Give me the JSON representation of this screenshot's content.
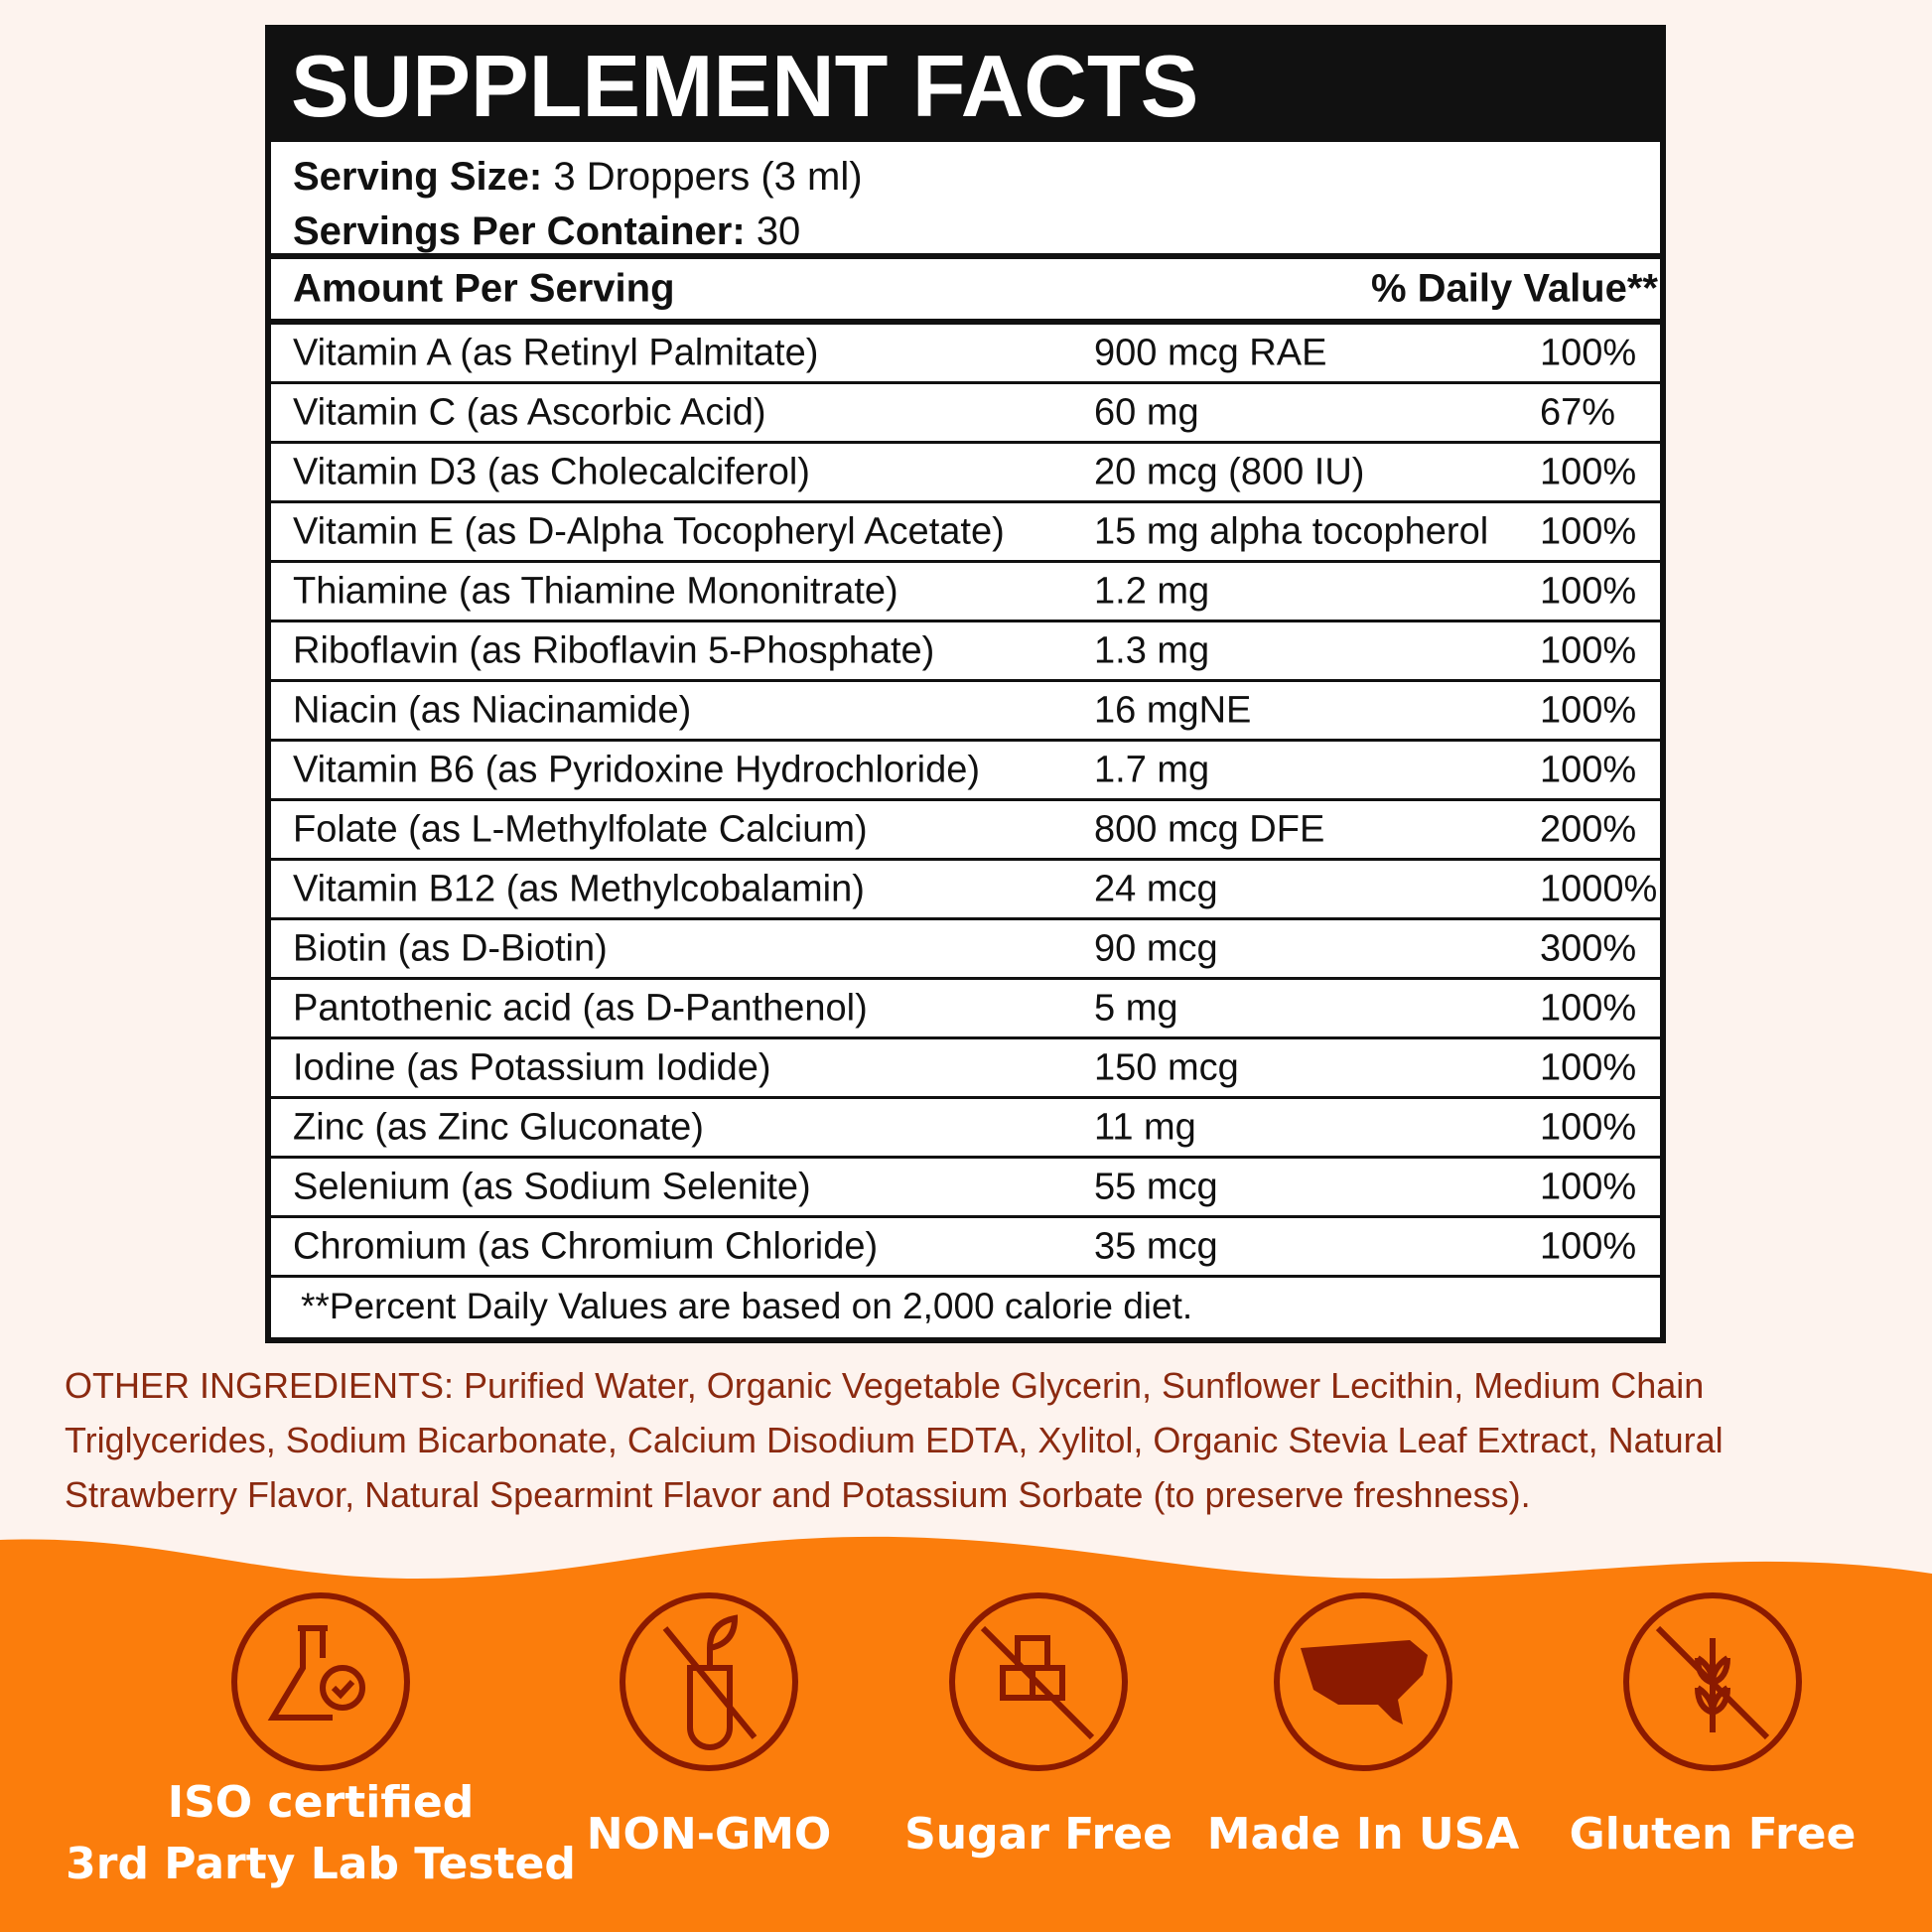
{
  "title": "SUPPLEMENT FACTS",
  "serving_size": {
    "label": "Serving Size:",
    "value": "3 Droppers (3 ml)"
  },
  "servings_per_container": {
    "label": "Servings Per Container:",
    "value": "30"
  },
  "table": {
    "header": [
      "Amount Per Serving",
      "% Daily Value**"
    ],
    "rows": [
      [
        "Vitamin A (as Retinyl Palmitate)",
        "900 mcg RAE",
        "100%"
      ],
      [
        "Vitamin C (as Ascorbic Acid)",
        "60 mg",
        "67%"
      ],
      [
        "Vitamin D3 (as Cholecalciferol)",
        "20 mcg (800 IU)",
        "100%"
      ],
      [
        "Vitamin E (as D-Alpha Tocopheryl Acetate)",
        "15 mg alpha tocopherol",
        "100%"
      ],
      [
        "Thiamine (as Thiamine Mononitrate)",
        "1.2 mg",
        "100%"
      ],
      [
        "Riboflavin (as Riboflavin 5-Phosphate)",
        "1.3 mg",
        "100%"
      ],
      [
        "Niacin (as Niacinamide)",
        "16 mgNE",
        "100%"
      ],
      [
        "Vitamin B6 (as Pyridoxine Hydrochloride)",
        "1.7 mg",
        "100%"
      ],
      [
        "Folate (as L-Methylfolate Calcium)",
        "800 mcg DFE",
        "200%"
      ],
      [
        "Vitamin B12 (as Methylcobalamin)",
        "24 mcg",
        "1000%"
      ],
      [
        "Biotin (as D-Biotin)",
        "90 mcg",
        "300%"
      ],
      [
        "Pantothenic acid (as D-Panthenol)",
        "5 mg",
        "100%"
      ],
      [
        "Iodine (as Potassium Iodide)",
        "150 mcg",
        "100%"
      ],
      [
        "Zinc (as Zinc Gluconate)",
        "11 mg",
        "100%"
      ],
      [
        "Selenium (as Sodium Selenite)",
        "55 mcg",
        "100%"
      ],
      [
        "Chromium (as Chromium Chloride)",
        "35 mcg",
        "100%"
      ]
    ]
  },
  "footnote": "**Percent Daily Values are based on 2,000 calorie diet.",
  "other_ingredients": {
    "label": "OTHER INGREDIENTS:",
    "text": "Purified Water, Organic Vegetable Glycerin, Sunflower Lecithin, Medium Chain Triglycerides, Sodium Bicarbonate, Calcium Disodium EDTA, Xylitol, Organic Stevia Leaf Extract, Natural Strawberry Flavor, Natural Spearmint Flavor and Potassium Sorbate (to preserve freshness)."
  },
  "badges": [
    [
      "ISO certified",
      "3rd Party Lab Tested"
    ],
    [
      "NON-GMO"
    ],
    [
      "Sugar Free"
    ],
    [
      "Made In USA"
    ],
    [
      "Gluten Free"
    ]
  ]
}
